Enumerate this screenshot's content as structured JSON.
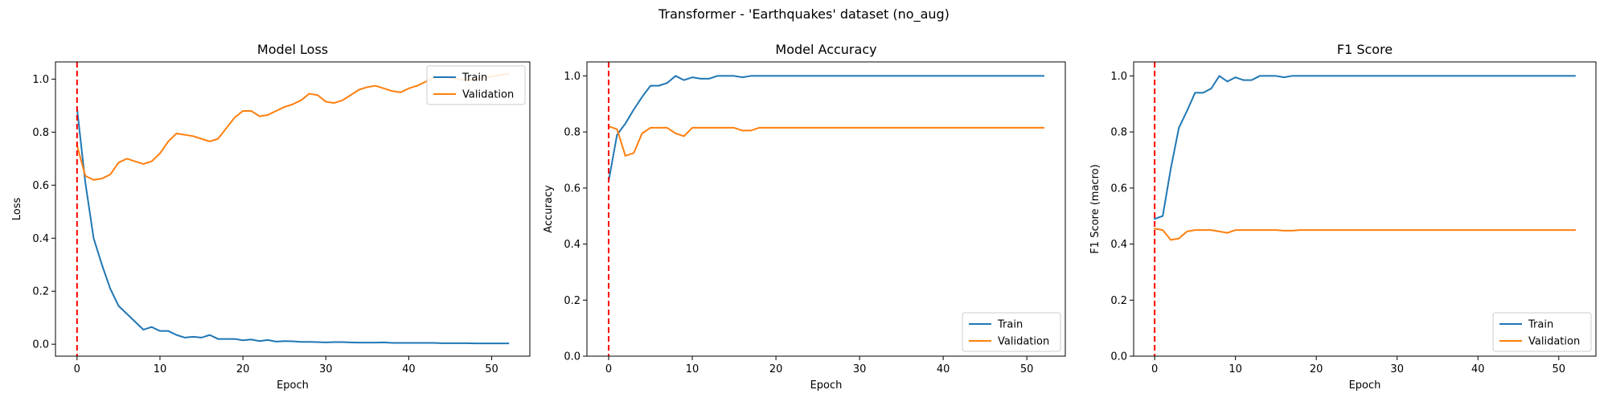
{
  "figure_title": "Transformer - 'Earthquakes' dataset (no_aug)",
  "colors": {
    "train": "#1f77b4",
    "validation": "#ff7f0e",
    "marker": "#ff0000"
  },
  "chart_data": [
    {
      "type": "line",
      "title": "Model Loss",
      "xlabel": "Epoch",
      "ylabel": "Loss",
      "xlim": [
        -2.6,
        54.6
      ],
      "ylim": [
        -0.045,
        1.065
      ],
      "xticks": [
        0,
        10,
        20,
        30,
        40,
        50
      ],
      "yticks": [
        0.0,
        0.2,
        0.4,
        0.6,
        0.8,
        1.0
      ],
      "ytick_labels": [
        "0.0",
        "0.2",
        "0.4",
        "0.6",
        "0.8",
        "1.0"
      ],
      "vline_x": 0,
      "legend": {
        "position": "top-right",
        "entries": [
          "Train",
          "Validation"
        ]
      },
      "x": [
        0,
        1,
        2,
        3,
        4,
        5,
        6,
        7,
        8,
        9,
        10,
        11,
        12,
        13,
        14,
        15,
        16,
        17,
        18,
        19,
        20,
        21,
        22,
        23,
        24,
        25,
        26,
        27,
        28,
        29,
        30,
        31,
        32,
        33,
        34,
        35,
        36,
        37,
        38,
        39,
        40,
        41,
        42,
        43,
        44,
        45,
        46,
        47,
        48,
        49,
        50,
        51,
        52
      ],
      "series": [
        {
          "name": "Train",
          "values": [
            0.89,
            0.61,
            0.4,
            0.3,
            0.21,
            0.145,
            0.115,
            0.085,
            0.055,
            0.065,
            0.05,
            0.05,
            0.035,
            0.025,
            0.028,
            0.025,
            0.035,
            0.02,
            0.02,
            0.02,
            0.015,
            0.018,
            0.012,
            0.016,
            0.01,
            0.012,
            0.011,
            0.009,
            0.009,
            0.008,
            0.007,
            0.008,
            0.008,
            0.007,
            0.006,
            0.006,
            0.006,
            0.007,
            0.005,
            0.005,
            0.005,
            0.005,
            0.005,
            0.005,
            0.004,
            0.004,
            0.004,
            0.004,
            0.003,
            0.003,
            0.003,
            0.003,
            0.003
          ]
        },
        {
          "name": "Validation",
          "values": [
            0.75,
            0.635,
            0.62,
            0.625,
            0.64,
            0.685,
            0.7,
            0.69,
            0.68,
            0.69,
            0.72,
            0.765,
            0.795,
            0.79,
            0.785,
            0.775,
            0.765,
            0.775,
            0.815,
            0.855,
            0.88,
            0.88,
            0.86,
            0.865,
            0.88,
            0.895,
            0.905,
            0.92,
            0.945,
            0.94,
            0.915,
            0.91,
            0.92,
            0.94,
            0.96,
            0.97,
            0.975,
            0.965,
            0.955,
            0.95,
            0.965,
            0.975,
            0.99,
            1.005,
            1.01,
            1.005,
            1.0,
            0.995,
            1.0,
            1.005,
            1.01,
            1.015,
            1.02
          ]
        }
      ]
    },
    {
      "type": "line",
      "title": "Model Accuracy",
      "xlabel": "Epoch",
      "ylabel": "Accuracy",
      "xlim": [
        -2.6,
        54.6
      ],
      "ylim": [
        0.0,
        1.05
      ],
      "xticks": [
        0,
        10,
        20,
        30,
        40,
        50
      ],
      "yticks": [
        0.0,
        0.2,
        0.4,
        0.6,
        0.8,
        1.0
      ],
      "ytick_labels": [
        "0.0",
        "0.2",
        "0.4",
        "0.6",
        "0.8",
        "1.0"
      ],
      "vline_x": 0,
      "legend": {
        "position": "bottom-right",
        "entries": [
          "Train",
          "Validation"
        ]
      },
      "x": [
        0,
        1,
        2,
        3,
        4,
        5,
        6,
        7,
        8,
        9,
        10,
        11,
        12,
        13,
        14,
        15,
        16,
        17,
        18,
        19,
        20,
        21,
        22,
        23,
        24,
        25,
        26,
        27,
        28,
        29,
        30,
        31,
        32,
        33,
        34,
        35,
        36,
        37,
        38,
        39,
        40,
        41,
        42,
        43,
        44,
        45,
        46,
        47,
        48,
        49,
        50,
        51,
        52
      ],
      "series": [
        {
          "name": "Train",
          "values": [
            0.625,
            0.79,
            0.83,
            0.88,
            0.925,
            0.965,
            0.965,
            0.975,
            1.0,
            0.985,
            0.995,
            0.99,
            0.99,
            1.0,
            1.0,
            1.0,
            0.995,
            1.0,
            1.0,
            1.0,
            1.0,
            1.0,
            1.0,
            1.0,
            1.0,
            1.0,
            1.0,
            1.0,
            1.0,
            1.0,
            1.0,
            1.0,
            1.0,
            1.0,
            1.0,
            1.0,
            1.0,
            1.0,
            1.0,
            1.0,
            1.0,
            1.0,
            1.0,
            1.0,
            1.0,
            1.0,
            1.0,
            1.0,
            1.0,
            1.0,
            1.0,
            1.0,
            1.0
          ]
        },
        {
          "name": "Validation",
          "values": [
            0.82,
            0.81,
            0.715,
            0.725,
            0.795,
            0.815,
            0.815,
            0.815,
            0.795,
            0.785,
            0.815,
            0.815,
            0.815,
            0.815,
            0.815,
            0.815,
            0.805,
            0.805,
            0.815,
            0.815,
            0.815,
            0.815,
            0.815,
            0.815,
            0.815,
            0.815,
            0.815,
            0.815,
            0.815,
            0.815,
            0.815,
            0.815,
            0.815,
            0.815,
            0.815,
            0.815,
            0.815,
            0.815,
            0.815,
            0.815,
            0.815,
            0.815,
            0.815,
            0.815,
            0.815,
            0.815,
            0.815,
            0.815,
            0.815,
            0.815,
            0.815,
            0.815,
            0.815
          ]
        }
      ]
    },
    {
      "type": "line",
      "title": "F1 Score",
      "xlabel": "Epoch",
      "ylabel": "F1 Score (macro)",
      "xlim": [
        -2.6,
        54.6
      ],
      "ylim": [
        0.0,
        1.05
      ],
      "xticks": [
        0,
        10,
        20,
        30,
        40,
        50
      ],
      "yticks": [
        0.0,
        0.2,
        0.4,
        0.6,
        0.8,
        1.0
      ],
      "ytick_labels": [
        "0.0",
        "0.2",
        "0.4",
        "0.6",
        "0.8",
        "1.0"
      ],
      "vline_x": 0,
      "legend": {
        "position": "bottom-right",
        "entries": [
          "Train",
          "Validation"
        ]
      },
      "x": [
        0,
        1,
        2,
        3,
        4,
        5,
        6,
        7,
        8,
        9,
        10,
        11,
        12,
        13,
        14,
        15,
        16,
        17,
        18,
        19,
        20,
        21,
        22,
        23,
        24,
        25,
        26,
        27,
        28,
        29,
        30,
        31,
        32,
        33,
        34,
        35,
        36,
        37,
        38,
        39,
        40,
        41,
        42,
        43,
        44,
        45,
        46,
        47,
        48,
        49,
        50,
        51,
        52
      ],
      "series": [
        {
          "name": "Train",
          "values": [
            0.49,
            0.5,
            0.67,
            0.815,
            0.875,
            0.94,
            0.94,
            0.955,
            1.0,
            0.98,
            0.995,
            0.985,
            0.985,
            1.0,
            1.0,
            1.0,
            0.995,
            1.0,
            1.0,
            1.0,
            1.0,
            1.0,
            1.0,
            1.0,
            1.0,
            1.0,
            1.0,
            1.0,
            1.0,
            1.0,
            1.0,
            1.0,
            1.0,
            1.0,
            1.0,
            1.0,
            1.0,
            1.0,
            1.0,
            1.0,
            1.0,
            1.0,
            1.0,
            1.0,
            1.0,
            1.0,
            1.0,
            1.0,
            1.0,
            1.0,
            1.0,
            1.0,
            1.0
          ]
        },
        {
          "name": "Validation",
          "values": [
            0.455,
            0.45,
            0.415,
            0.42,
            0.445,
            0.45,
            0.45,
            0.45,
            0.445,
            0.44,
            0.45,
            0.45,
            0.45,
            0.45,
            0.45,
            0.45,
            0.448,
            0.448,
            0.45,
            0.45,
            0.45,
            0.45,
            0.45,
            0.45,
            0.45,
            0.45,
            0.45,
            0.45,
            0.45,
            0.45,
            0.45,
            0.45,
            0.45,
            0.45,
            0.45,
            0.45,
            0.45,
            0.45,
            0.45,
            0.45,
            0.45,
            0.45,
            0.45,
            0.45,
            0.45,
            0.45,
            0.45,
            0.45,
            0.45,
            0.45,
            0.45,
            0.45,
            0.45
          ]
        }
      ]
    }
  ]
}
